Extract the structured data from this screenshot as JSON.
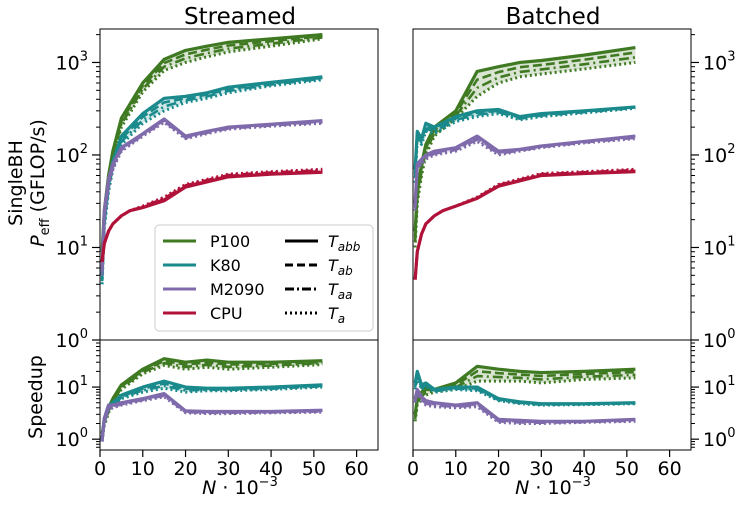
{
  "chart_data": {
    "type": "line",
    "panels": {
      "streamed": {
        "title": "Streamed"
      },
      "batched": {
        "title": "Batched"
      }
    },
    "axes": {
      "x_label_base": "N",
      "x_label_suffix": "· 10",
      "x_label_exp": "−3",
      "xlim": [
        0,
        65
      ],
      "x_ticks": [
        "0",
        "10",
        "20",
        "30",
        "40",
        "50",
        "60"
      ],
      "top_ylabel_line1": "SingleBH",
      "top_ylabel_p": "P",
      "top_ylabel_sub": "eff",
      "top_ylabel_unit": "(GFLOP/s)",
      "top_ylim": [
        1,
        2300
      ],
      "top_y_ticks": [
        {
          "base": "10",
          "exp": "0",
          "value": 1
        },
        {
          "base": "10",
          "exp": "1",
          "value": 10
        },
        {
          "base": "10",
          "exp": "2",
          "value": 100
        },
        {
          "base": "10",
          "exp": "3",
          "value": 1000
        }
      ],
      "bottom_ylabel": "Speedup",
      "bottom_ylim": [
        0.62,
        80
      ],
      "bottom_y_ticks": [
        {
          "base": "10",
          "exp": "0",
          "value": 1
        },
        {
          "base": "10",
          "exp": "1",
          "value": 10
        }
      ]
    },
    "legend": {
      "devices": [
        {
          "label": "P100",
          "color": "#3f7a22"
        },
        {
          "label": "K80",
          "color": "#1a8a8c"
        },
        {
          "label": "M2090",
          "color": "#7f6bab"
        },
        {
          "label": "CPU",
          "color": "#b0123a"
        }
      ],
      "kernels": [
        {
          "base": "T",
          "sub": "abb",
          "style": "solid"
        },
        {
          "base": "T",
          "sub": "ab",
          "style": "dashed"
        },
        {
          "base": "T",
          "sub": "aa",
          "style": "dashdot"
        },
        {
          "base": "T",
          "sub": "a",
          "style": "dotted"
        }
      ]
    },
    "series": {
      "streamed_perf": [
        {
          "device": "P100",
          "x": [
            0.5,
            1,
            2,
            3,
            5,
            10,
            15,
            20,
            25,
            30,
            40,
            52
          ],
          "abb": [
            9,
            25,
            60,
            110,
            250,
            600,
            1080,
            1350,
            1500,
            1650,
            1800,
            2000
          ],
          "a": [
            7,
            20,
            48,
            90,
            200,
            480,
            820,
            1000,
            1150,
            1300,
            1500,
            1800
          ]
        },
        {
          "device": "K80",
          "x": [
            0.5,
            1,
            2,
            3,
            5,
            10,
            15,
            20,
            25,
            30,
            40,
            52
          ],
          "abb": [
            5,
            20,
            50,
            85,
            160,
            280,
            410,
            430,
            470,
            540,
            610,
            700
          ],
          "a": [
            4,
            16,
            40,
            70,
            130,
            220,
            300,
            370,
            410,
            470,
            560,
            650
          ]
        },
        {
          "device": "M2090",
          "x": [
            0.5,
            1,
            2,
            3,
            5,
            10,
            15,
            20,
            25,
            30,
            40,
            52
          ],
          "abb": [
            6,
            25,
            55,
            80,
            120,
            170,
            245,
            160,
            180,
            200,
            215,
            235
          ],
          "a": [
            5,
            20,
            45,
            70,
            110,
            160,
            225,
            150,
            170,
            190,
            205,
            220
          ]
        },
        {
          "device": "CPU",
          "x": [
            0.5,
            1,
            2,
            3,
            5,
            7,
            10,
            15,
            20,
            30,
            40,
            52
          ],
          "abb": [
            7,
            11,
            15,
            18,
            22,
            25,
            27,
            32,
            45,
            58,
            62,
            65
          ],
          "a": [
            7,
            11,
            15,
            18,
            22,
            25,
            28,
            35,
            48,
            62,
            66,
            70
          ]
        }
      ],
      "batched_perf": [
        {
          "device": "P100",
          "x": [
            0.5,
            1,
            2,
            3,
            5,
            10,
            15,
            20,
            25,
            30,
            40,
            52
          ],
          "abb": [
            15,
            40,
            80,
            130,
            200,
            300,
            800,
            900,
            1000,
            1050,
            1200,
            1450
          ],
          "a": [
            10,
            30,
            60,
            100,
            160,
            250,
            430,
            600,
            700,
            750,
            850,
            1000
          ]
        },
        {
          "device": "K80",
          "x": [
            0.5,
            1,
            2,
            3,
            5,
            10,
            15,
            20,
            25,
            30,
            40,
            52
          ],
          "abb": [
            70,
            180,
            150,
            220,
            200,
            260,
            300,
            310,
            260,
            280,
            300,
            330
          ],
          "a": [
            50,
            150,
            130,
            180,
            170,
            230,
            260,
            280,
            240,
            260,
            285,
            320
          ]
        },
        {
          "device": "M2090",
          "x": [
            0.5,
            1,
            2,
            3,
            5,
            10,
            15,
            20,
            25,
            30,
            40,
            52
          ],
          "abb": [
            30,
            80,
            90,
            100,
            110,
            120,
            160,
            110,
            115,
            125,
            140,
            160
          ],
          "a": [
            25,
            70,
            80,
            90,
            100,
            110,
            140,
            100,
            110,
            120,
            135,
            150
          ]
        },
        {
          "device": "CPU",
          "x": [
            0.5,
            1,
            2,
            3,
            5,
            7,
            10,
            15,
            20,
            30,
            40,
            52
          ],
          "abb": [
            4.5,
            9,
            14,
            18,
            22,
            25,
            28,
            34,
            46,
            60,
            63,
            66
          ],
          "a": [
            4.5,
            9,
            14,
            18,
            22,
            25,
            28,
            35,
            48,
            63,
            66,
            70
          ]
        }
      ],
      "streamed_speedup": [
        {
          "device": "P100",
          "x": [
            0.5,
            1,
            2,
            3,
            5,
            10,
            15,
            20,
            25,
            30,
            40,
            52
          ],
          "abb": [
            1.3,
            2.2,
            4,
            6,
            11,
            22,
            35,
            30,
            33,
            30,
            30,
            32
          ],
          "a": [
            1.1,
            1.8,
            3.2,
            5,
            9,
            18,
            26,
            22,
            24,
            22,
            24,
            27
          ]
        },
        {
          "device": "K80",
          "x": [
            0.5,
            1,
            2,
            3,
            5,
            10,
            15,
            20,
            25,
            30,
            40,
            52
          ],
          "abb": [
            1.0,
            2.5,
            4.5,
            5,
            7,
            10,
            13,
            10,
            9.5,
            9.5,
            10,
            11
          ],
          "a": [
            0.9,
            2.0,
            3.6,
            4.2,
            6,
            8,
            9.5,
            8,
            8.5,
            8.5,
            9,
            10
          ]
        },
        {
          "device": "M2090",
          "x": [
            0.5,
            1,
            2,
            3,
            5,
            10,
            15,
            20,
            25,
            30,
            40,
            52
          ],
          "abb": [
            1.0,
            2.5,
            4.5,
            4.5,
            5,
            6,
            7.5,
            3.5,
            3.4,
            3.4,
            3.4,
            3.6
          ],
          "a": [
            0.9,
            2.0,
            3.6,
            4.0,
            4.5,
            5.5,
            6.5,
            3.2,
            3.1,
            3.1,
            3.2,
            3.3
          ]
        }
      ],
      "batched_speedup": [
        {
          "device": "P100",
          "x": [
            0.5,
            1,
            2,
            3,
            5,
            10,
            15,
            20,
            25,
            30,
            40,
            52
          ],
          "abb": [
            3,
            6,
            8,
            10,
            9,
            12,
            25,
            22,
            20,
            19,
            20,
            22
          ],
          "a": [
            2.2,
            4.5,
            6,
            7,
            8,
            9,
            13,
            13,
            13,
            12,
            14,
            15
          ]
        },
        {
          "device": "K80",
          "x": [
            0.5,
            1,
            2,
            3,
            5,
            10,
            15,
            20,
            25,
            30,
            40,
            52
          ],
          "abb": [
            12,
            20,
            11,
            12,
            9,
            10,
            10,
            6,
            5.2,
            4.8,
            4.8,
            5.0
          ],
          "a": [
            9,
            15,
            9,
            10,
            8,
            9,
            8.5,
            5.5,
            4.8,
            4.5,
            4.6,
            4.8
          ]
        },
        {
          "device": "M2090",
          "x": [
            0.5,
            1,
            2,
            3,
            5,
            10,
            15,
            20,
            25,
            30,
            40,
            52
          ],
          "abb": [
            6,
            9,
            6.5,
            5.5,
            5,
            4.5,
            5,
            2.4,
            2.3,
            2.2,
            2.2,
            2.4
          ],
          "a": [
            5,
            8,
            5.5,
            4.5,
            4.2,
            4,
            4.2,
            2.1,
            2.0,
            2.0,
            2.1,
            2.2
          ]
        }
      ]
    }
  }
}
